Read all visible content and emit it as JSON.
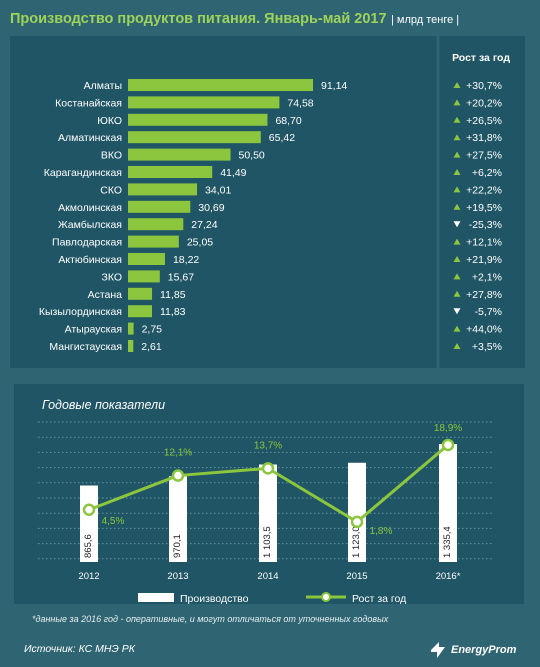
{
  "header": {
    "title": "Производство продуктов питания. Январь-май 2017",
    "unit": "| млрд тенге |"
  },
  "chart_data": [
    {
      "type": "bar",
      "orientation": "horizontal",
      "growth_header": "Рост за год",
      "categories": [
        "Алматы",
        "Костанайская",
        "ЮКО",
        "Алматинская",
        "ВКО",
        "Карагандинская",
        "СКО",
        "Акмолинская",
        "Жамбылская",
        "Павлодарская",
        "Актюбинская",
        "ЗКО",
        "Астана",
        "Кызылординская",
        "Атырауская",
        "Мангистауская"
      ],
      "value_labels": [
        "91,14",
        "74,58",
        "68,70",
        "65,42",
        "50,50",
        "41,49",
        "34,01",
        "30,69",
        "27,24",
        "25,05",
        "18,22",
        "15,67",
        "11,85",
        "11,83",
        "2,75",
        "2,61"
      ],
      "values": [
        91.14,
        74.58,
        68.7,
        65.42,
        50.5,
        41.49,
        34.01,
        30.69,
        27.24,
        25.05,
        18.22,
        15.67,
        11.85,
        11.83,
        2.75,
        2.61
      ],
      "growth_labels": [
        "+30,7%",
        "+20,2%",
        "+26,5%",
        "+31,8%",
        "+27,5%",
        "+6,2%",
        "+22,2%",
        "+19,5%",
        "-25,3%",
        "+12,1%",
        "+21,9%",
        "+2,1%",
        "+27,8%",
        "-5,7%",
        "+44,0%",
        "+3,5%"
      ],
      "growth_direction": [
        "up",
        "up",
        "up",
        "up",
        "up",
        "up",
        "up",
        "up",
        "down",
        "up",
        "up",
        "up",
        "up",
        "down",
        "up",
        "up"
      ],
      "colors": {
        "bar": "#8cc63f",
        "up": "#8cc63f",
        "down": "#ffffff"
      }
    },
    {
      "type": "bar+line",
      "title": "Годовые показатели",
      "categories": [
        "2012",
        "2013",
        "2014",
        "2015",
        "2016*"
      ],
      "series": [
        {
          "name": "Производство",
          "type": "bar",
          "values": [
            865.6,
            970.1,
            1103.5,
            1123.0,
            1335.4
          ],
          "labels": [
            "865,6",
            "970,1",
            "1 103,5",
            "1 123,0",
            "1 335,4"
          ],
          "color": "#ffffff"
        },
        {
          "name": "Рост за год",
          "type": "line",
          "values": [
            4.5,
            12.1,
            13.7,
            1.8,
            18.9
          ],
          "labels": [
            "4,5%",
            "12,1%",
            "13,7%",
            "1,8%",
            "18,9%"
          ],
          "color": "#8cc63f"
        }
      ],
      "grid": true,
      "legend": "bottom"
    }
  ],
  "footnote": "*данные за 2016 год - оперативные, и могут отличаться от уточненных годовых",
  "source": "Источник: КС МНЭ РК",
  "logo_text": "EnergyProm"
}
